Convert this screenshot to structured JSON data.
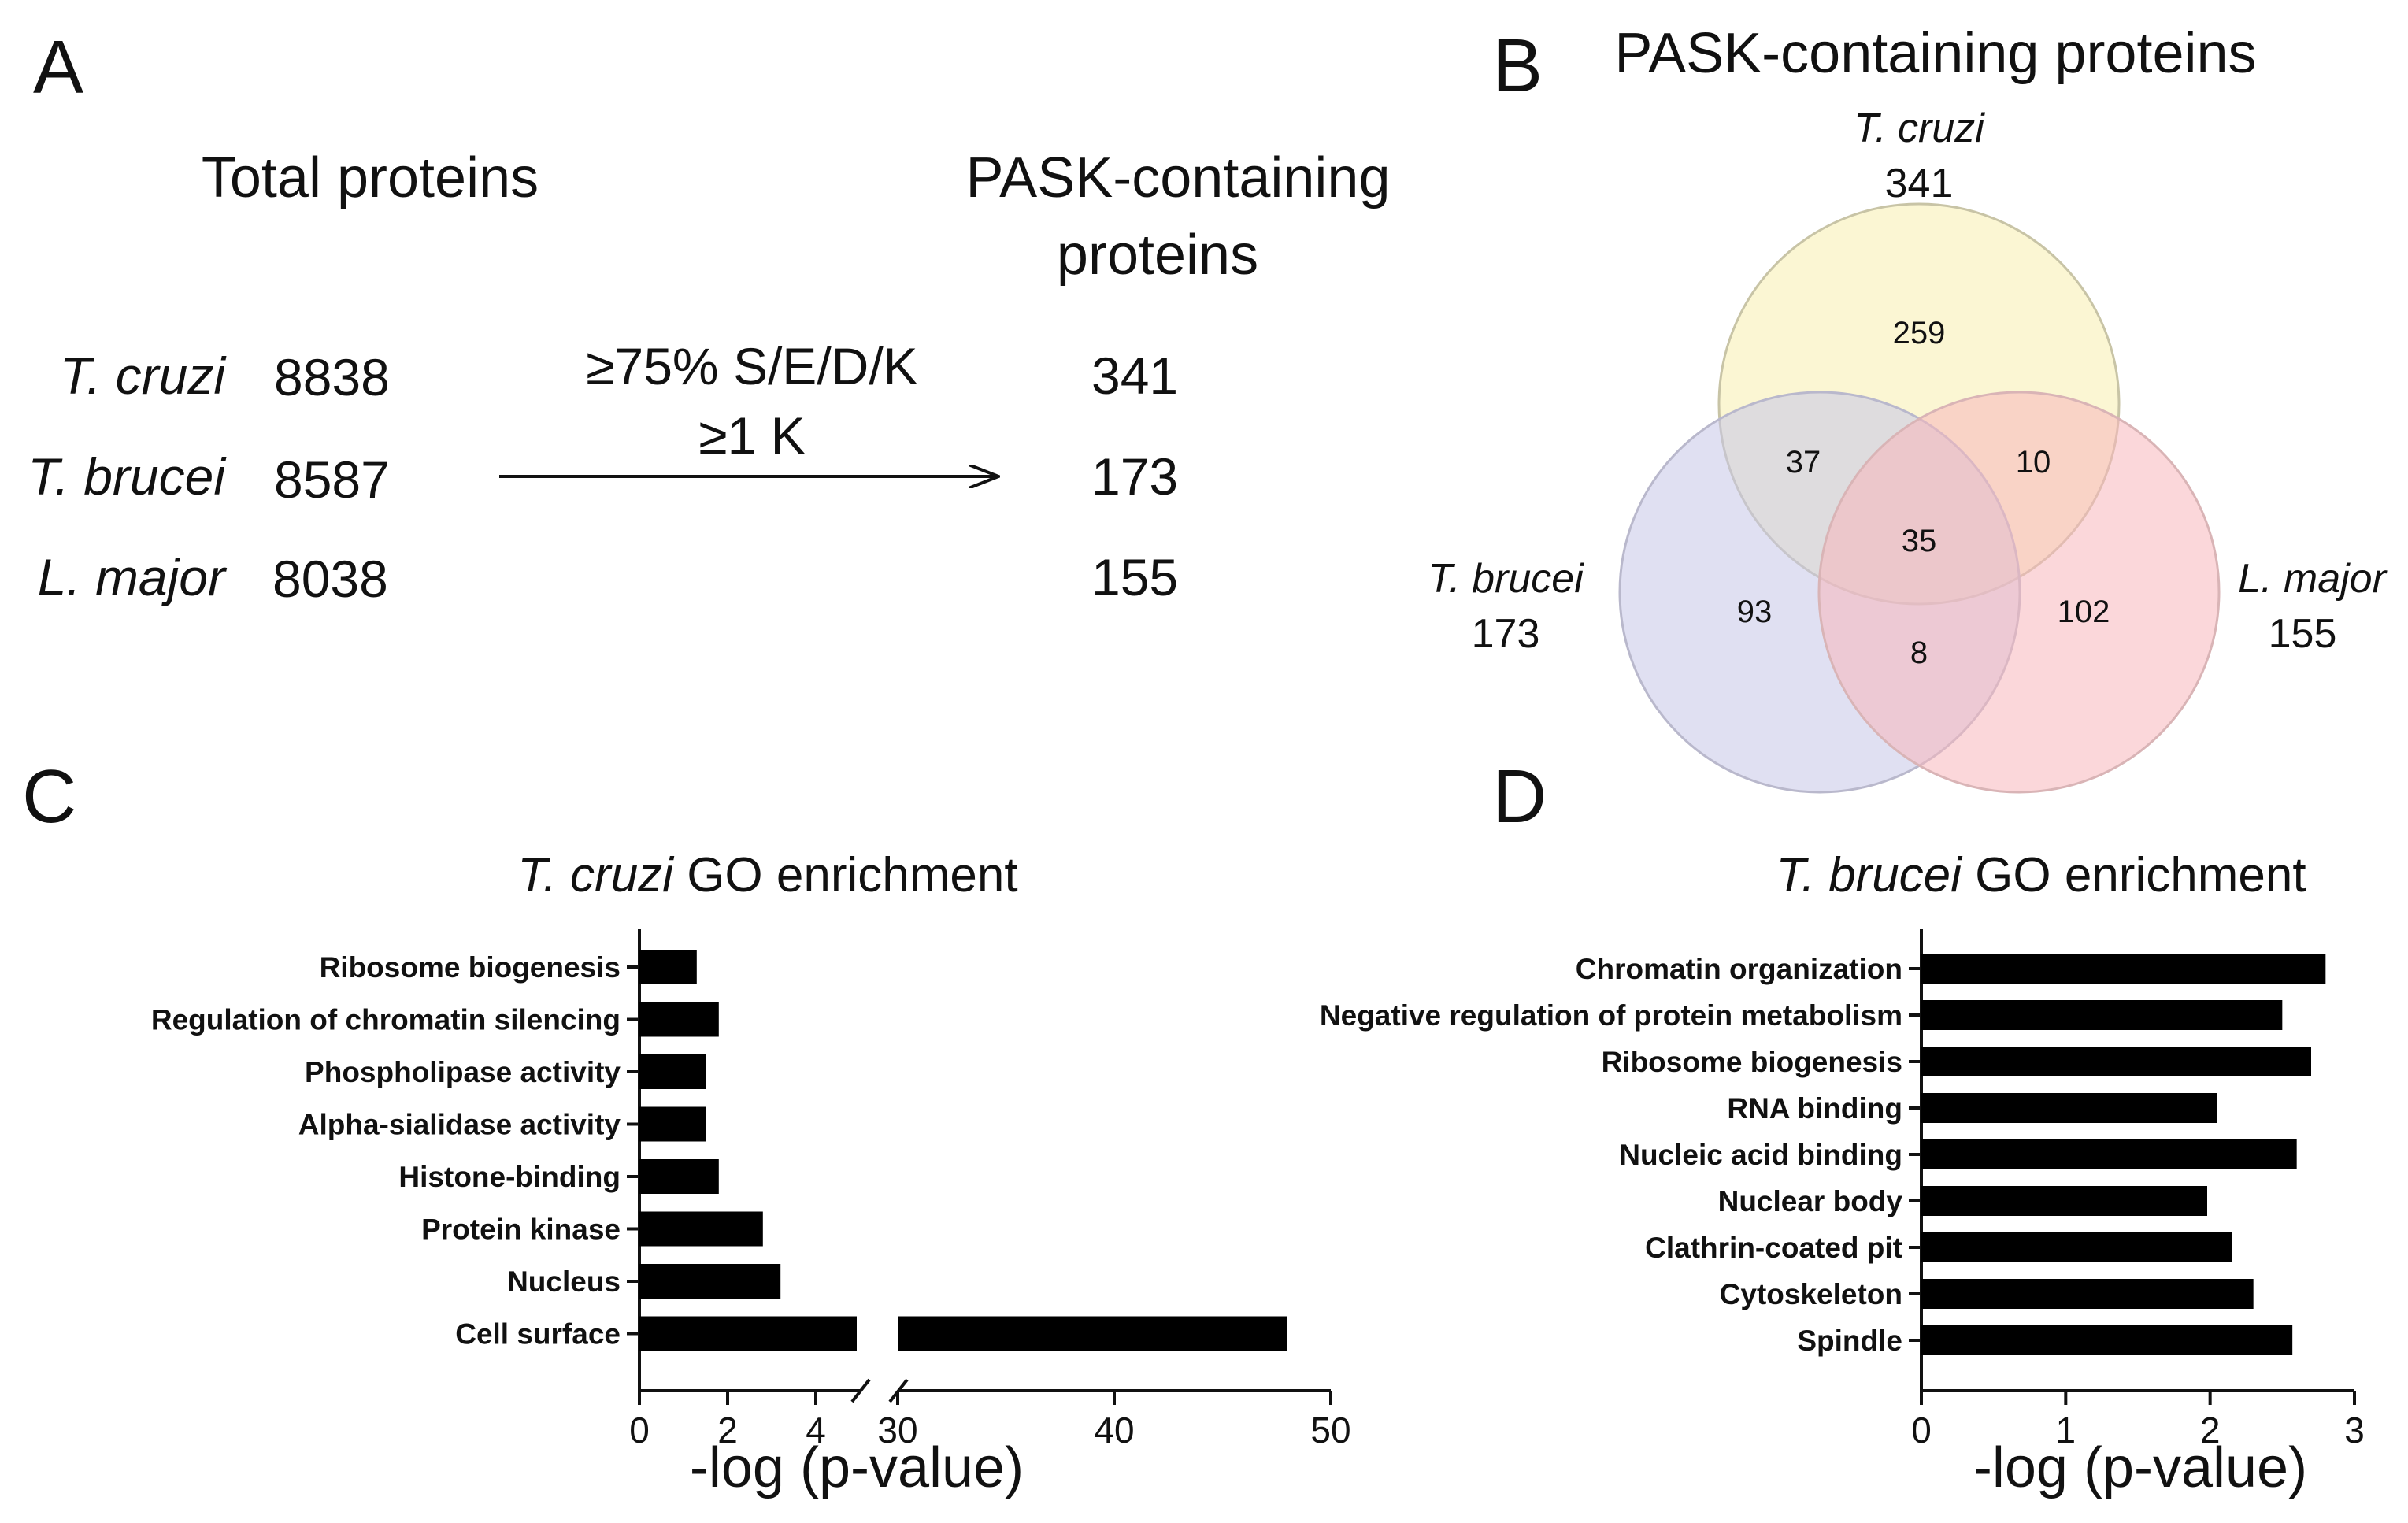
{
  "panels": {
    "A": {
      "letter": "A",
      "total_heading": "Total proteins",
      "pask_heading_line1": "PASK-containing",
      "pask_heading_line2": "proteins",
      "criteria_line1": "≥75% S/E/D/K",
      "criteria_line2": "≥1 K",
      "rows": [
        {
          "species": "T. cruzi",
          "total": "8838",
          "pask": "341"
        },
        {
          "species": "T. brucei",
          "total": "8587",
          "pask": "173"
        },
        {
          "species": "L. major",
          "total": "8038",
          "pask": "155"
        }
      ]
    },
    "B": {
      "letter": "B",
      "title": "PASK-containing proteins",
      "sets": [
        {
          "name": "T. cruzi",
          "total": "341",
          "color": "#f7efaf"
        },
        {
          "name": "T. brucei",
          "total": "173",
          "color": "#c7c6e8"
        },
        {
          "name": "L. major",
          "total": "155",
          "color": "#f8b7bb"
        }
      ],
      "regions": {
        "cruzi_only": "259",
        "brucei_only": "93",
        "major_only": "102",
        "cruzi_brucei": "37",
        "cruzi_major": "10",
        "brucei_major": "8",
        "all_three": "35"
      }
    },
    "C": {
      "letter": "C",
      "title_species": "T. cruzi",
      "title_rest": " GO enrichment"
    },
    "D": {
      "letter": "D",
      "title_species": "T. brucei",
      "title_rest": " GO enrichment"
    }
  },
  "chart_data": [
    {
      "panel": "C",
      "type": "bar",
      "orientation": "horizontal",
      "title": "T. cruzi GO enrichment",
      "xlabel": "-log (p-value)",
      "ylabel": "",
      "axis_break": {
        "lower_range": [
          0,
          5
        ],
        "upper_range": [
          30,
          50
        ]
      },
      "lower_ticks": [
        "0",
        "2",
        "4"
      ],
      "upper_ticks": [
        "30",
        "40",
        "50"
      ],
      "categories": [
        "Ribosome biogenesis",
        "Regulation of chromatin silencing",
        "Phospholipase activity",
        "Alpha-sialidase activity",
        "Histone-binding",
        "Protein kinase",
        "Nucleus",
        "Cell surface"
      ],
      "values": [
        1.3,
        1.8,
        1.5,
        1.5,
        1.8,
        2.8,
        3.2,
        48
      ]
    },
    {
      "panel": "D",
      "type": "bar",
      "orientation": "horizontal",
      "title": "T. brucei GO enrichment",
      "xlabel": "-log (p-value)",
      "ylabel": "",
      "xlim": [
        0,
        3
      ],
      "ticks": [
        "0",
        "1",
        "2",
        "3"
      ],
      "categories": [
        "Chromatin organization",
        "Negative regulation of protein metabolism",
        "Ribosome biogenesis",
        "RNA binding",
        "Nucleic acid binding",
        "Nuclear body",
        "Clathrin-coated pit",
        "Cytoskeleton",
        "Spindle"
      ],
      "values": [
        2.8,
        2.5,
        2.7,
        2.05,
        2.6,
        1.98,
        2.15,
        2.3,
        2.57
      ]
    }
  ]
}
